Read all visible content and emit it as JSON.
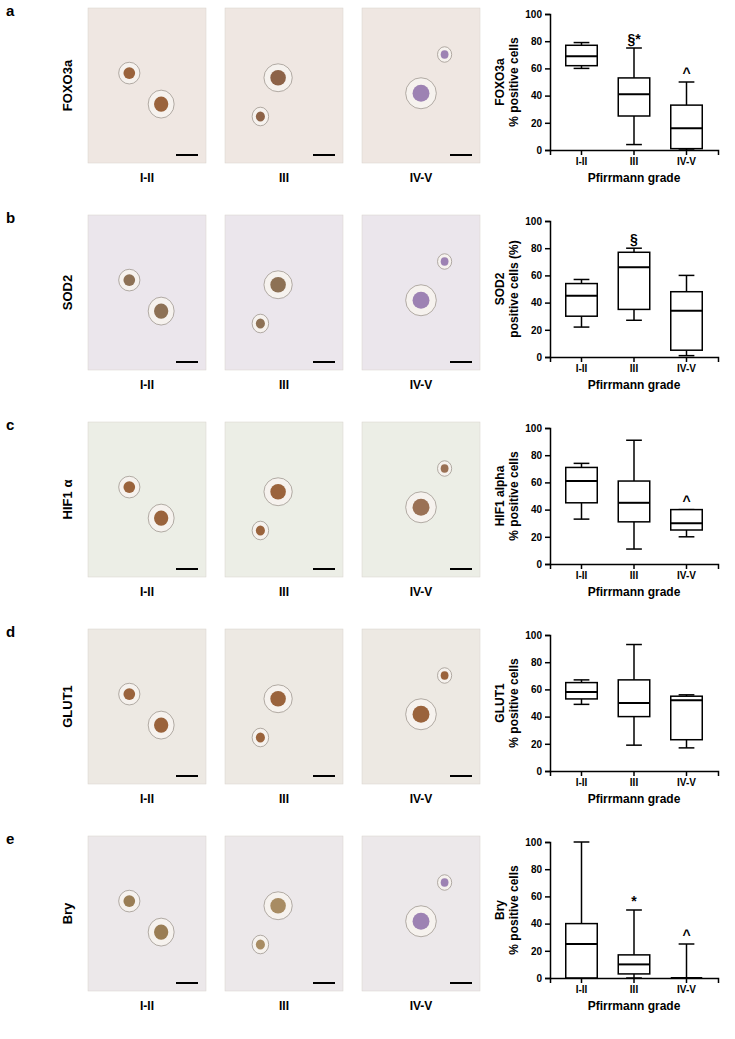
{
  "chart_data": [
    {
      "type": "box",
      "panel_label": "a",
      "title": "FOXO3a",
      "image_labels": [
        "I-II",
        "III",
        "IV-V"
      ],
      "categories": [
        "I-II",
        "III",
        "IV-V"
      ],
      "min": [
        60,
        4,
        0
      ],
      "q1": [
        62,
        25,
        1
      ],
      "median": [
        69,
        41,
        16
      ],
      "q3": [
        77,
        53,
        33
      ],
      "max": [
        79,
        75,
        50
      ],
      "annotations": [
        null,
        "§*",
        "^"
      ],
      "y_label": [
        "FOXO3a",
        "% positive cells"
      ],
      "x_label": "Pfirrmann grade",
      "ylim": [
        0,
        100
      ],
      "yticks": [
        0,
        20,
        40,
        60,
        80,
        100
      ]
    },
    {
      "type": "box",
      "panel_label": "b",
      "title": "SOD2",
      "image_labels": [
        "I-II",
        "III",
        "IV-V"
      ],
      "categories": [
        "I-II",
        "III",
        "IV-V"
      ],
      "min": [
        22,
        27,
        1
      ],
      "q1": [
        30,
        35,
        5
      ],
      "median": [
        45,
        66,
        34
      ],
      "q3": [
        54,
        77,
        48
      ],
      "max": [
        57,
        80,
        60
      ],
      "annotations": [
        null,
        "§",
        null
      ],
      "y_label": [
        "SOD2",
        "positive cells (%)"
      ],
      "x_label": "Pfirrmann grade",
      "ylim": [
        0,
        100
      ],
      "yticks": [
        0,
        20,
        40,
        60,
        80,
        100
      ]
    },
    {
      "type": "box",
      "panel_label": "c",
      "title": "HIF1 α",
      "image_labels": [
        "I-II",
        "III",
        "IV-V"
      ],
      "categories": [
        "I-II",
        "III",
        "IV-V"
      ],
      "min": [
        33,
        11,
        20
      ],
      "q1": [
        45,
        31,
        25
      ],
      "median": [
        61,
        45,
        30
      ],
      "q3": [
        71,
        61,
        40
      ],
      "max": [
        74,
        91,
        40
      ],
      "annotations": [
        null,
        null,
        "^"
      ],
      "y_label": [
        "HIF1 alpha",
        "% positive cells"
      ],
      "x_label": "Pfirrmann grade",
      "ylim": [
        0,
        100
      ],
      "yticks": [
        0,
        20,
        40,
        60,
        80,
        100
      ]
    },
    {
      "type": "box",
      "panel_label": "d",
      "title": "GLUT1",
      "image_labels": [
        "I-II",
        "III",
        "IV-V"
      ],
      "categories": [
        "I-II",
        "III",
        "IV-V"
      ],
      "min": [
        49,
        19,
        17
      ],
      "q1": [
        53,
        40,
        23
      ],
      "median": [
        58,
        50,
        52
      ],
      "q3": [
        65,
        67,
        55
      ],
      "max": [
        67,
        93,
        56
      ],
      "annotations": [
        null,
        null,
        null
      ],
      "y_label": [
        "GLUT1",
        "% positive cells"
      ],
      "x_label": "Pfirrmann grade",
      "ylim": [
        0,
        100
      ],
      "yticks": [
        0,
        20,
        40,
        60,
        80,
        100
      ]
    },
    {
      "type": "box",
      "panel_label": "e",
      "title": "Bry",
      "image_labels": [
        "I-II",
        "III",
        "IV-V"
      ],
      "categories": [
        "I-II",
        "III",
        "IV-V"
      ],
      "min": [
        0,
        0,
        0
      ],
      "q1": [
        0,
        3,
        0
      ],
      "median": [
        25,
        10,
        0
      ],
      "q3": [
        40,
        17,
        0
      ],
      "max": [
        100,
        50,
        25
      ],
      "annotations": [
        null,
        "*",
        "^"
      ],
      "y_label": [
        "Bry",
        "% positive cells"
      ],
      "x_label": "Pfirrmann grade",
      "ylim": [
        0,
        100
      ],
      "yticks": [
        0,
        20,
        40,
        60,
        80,
        100
      ]
    }
  ]
}
